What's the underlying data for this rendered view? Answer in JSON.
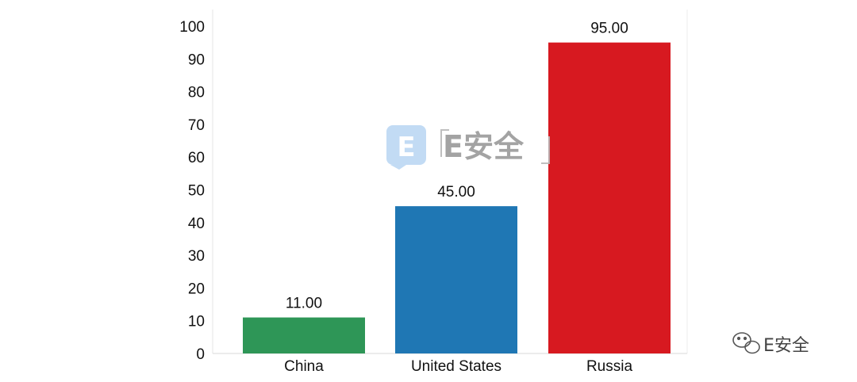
{
  "chart_data": {
    "type": "bar",
    "categories": [
      "China",
      "United States",
      "Russia"
    ],
    "values": [
      11.0,
      45.0,
      95.0
    ],
    "value_labels": [
      "11.00",
      "45.00",
      "95.00"
    ],
    "colors": [
      "#2e9657",
      "#1f77b4",
      "#d71920"
    ],
    "title": "",
    "xlabel": "",
    "ylabel": "",
    "ylim": [
      0,
      100
    ],
    "yticks": [
      0,
      10,
      20,
      30,
      40,
      50,
      60,
      70,
      80,
      90,
      100
    ],
    "grid": false,
    "legend": "none"
  },
  "watermark": {
    "logo_letter": "E",
    "text": "E安全"
  },
  "footer": {
    "brand": "E安全",
    "icon": "wechat-icon"
  }
}
